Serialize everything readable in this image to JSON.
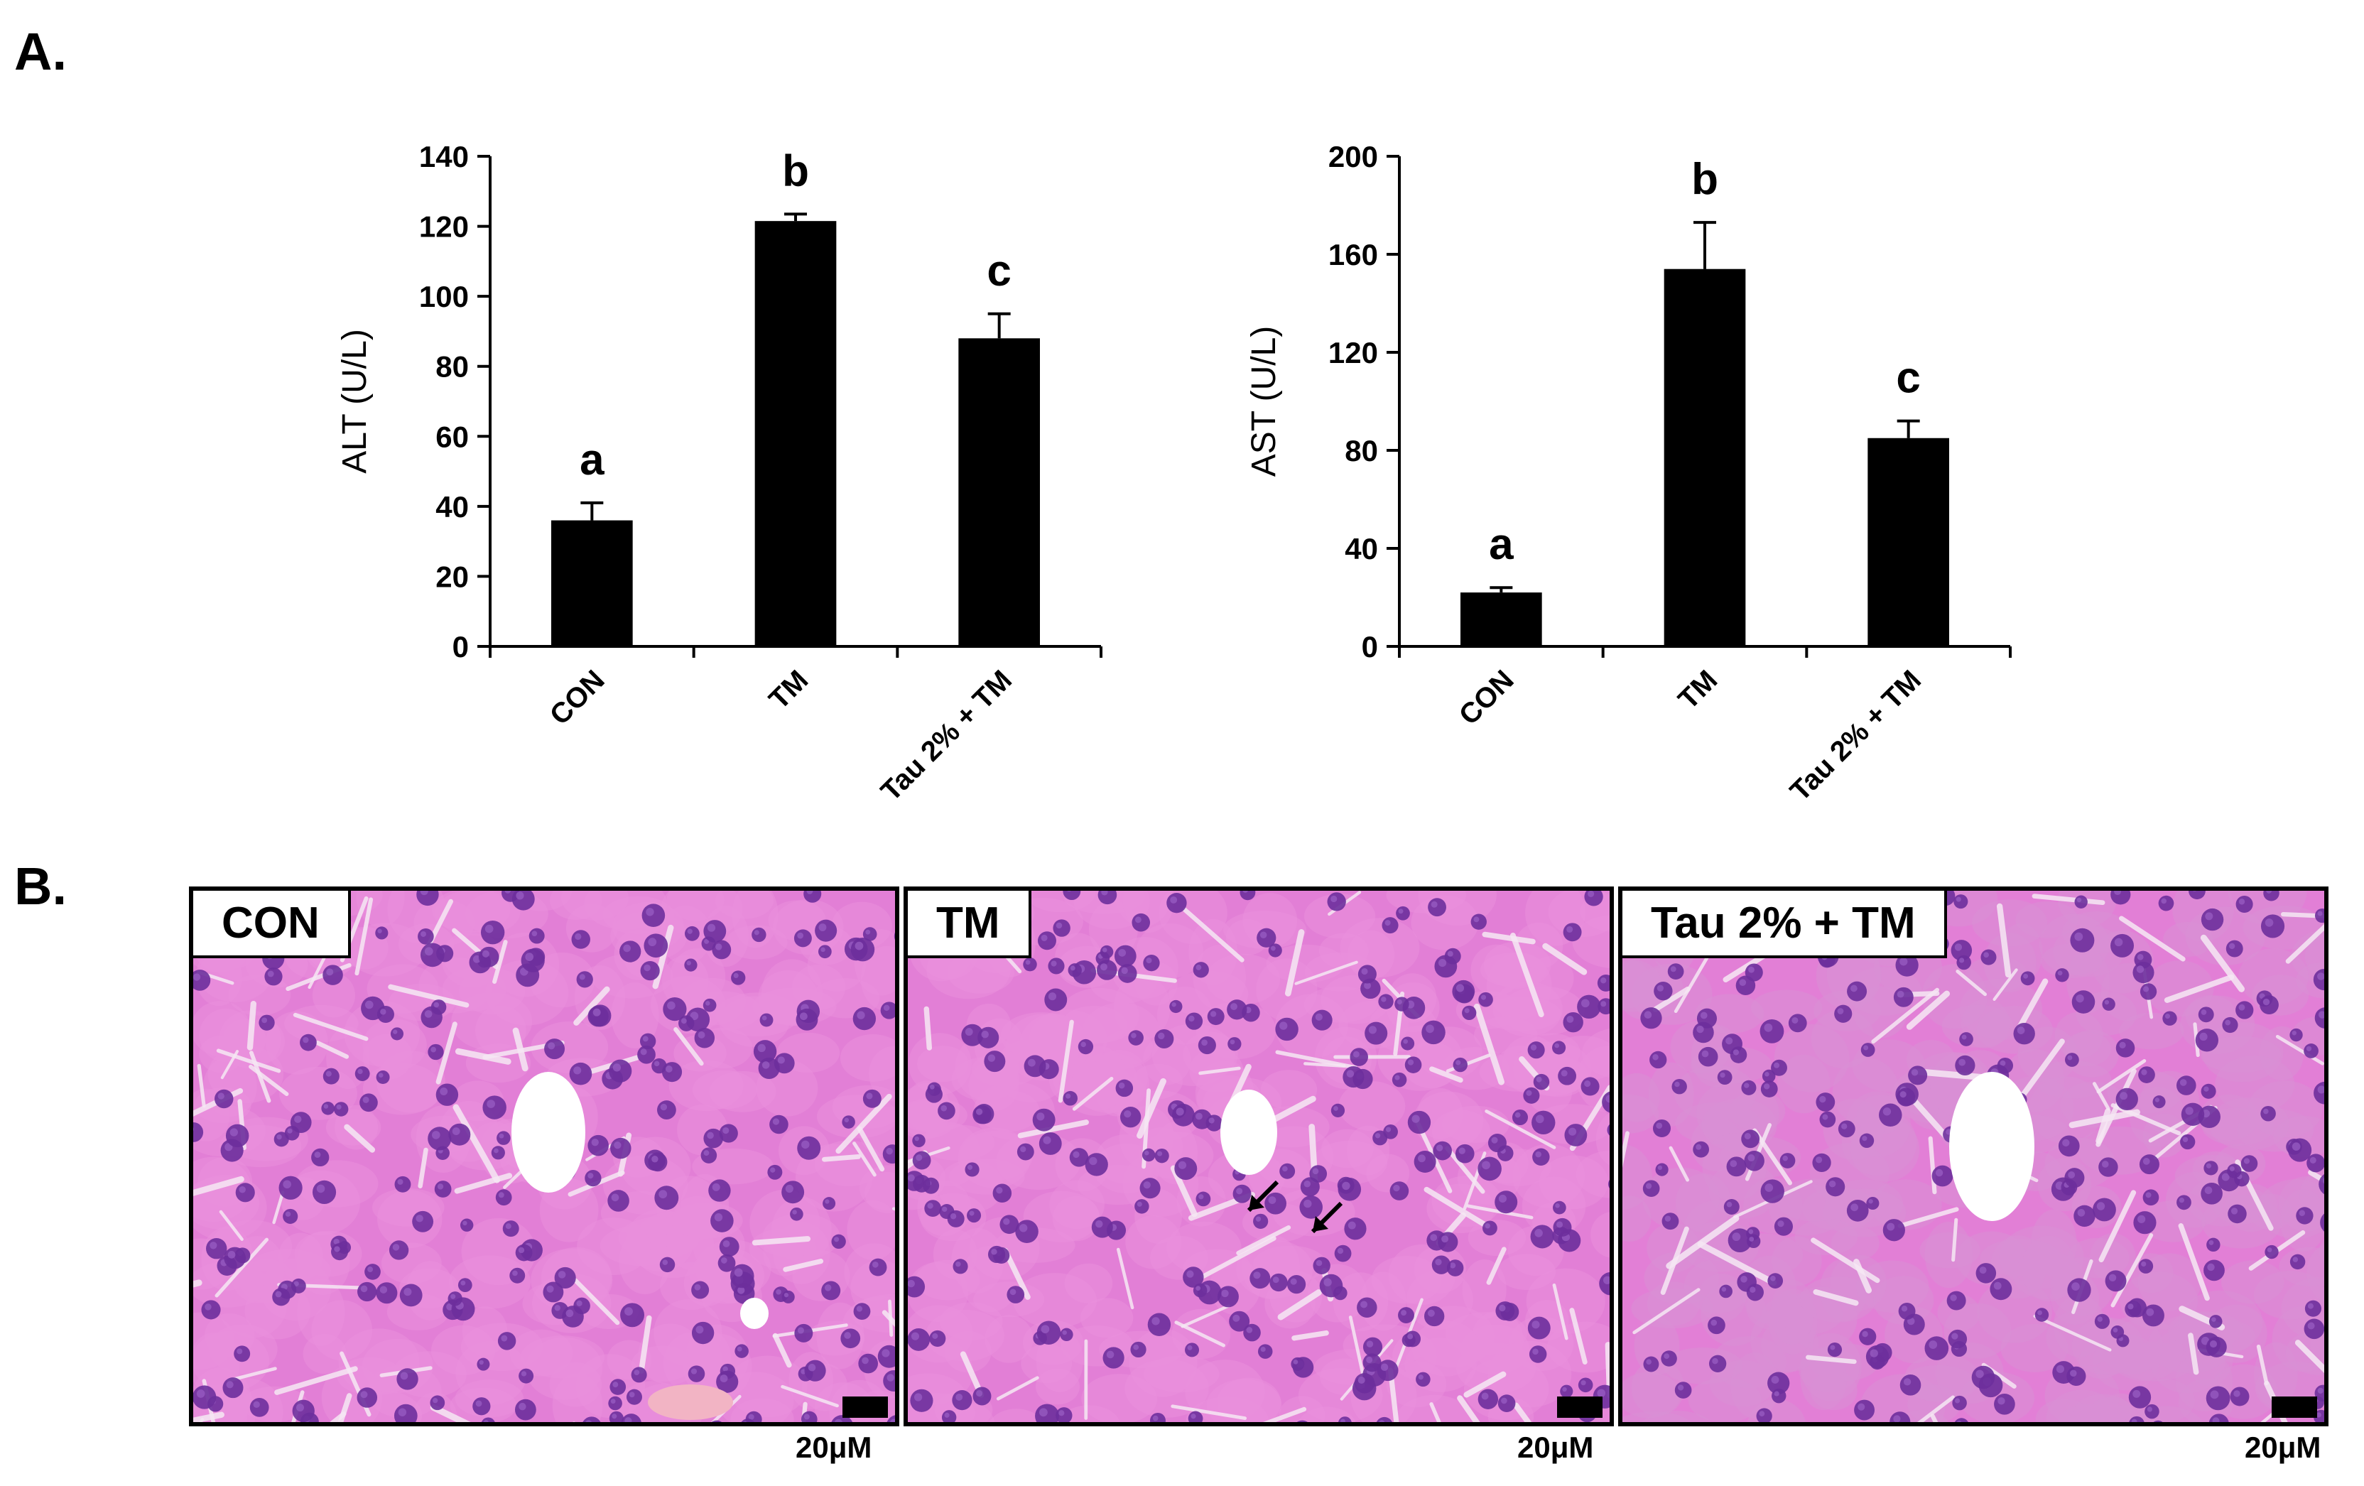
{
  "panels": {
    "a_label": "A.",
    "b_label": "B."
  },
  "chart_data": [
    {
      "type": "bar",
      "categories": [
        "CON",
        "TM",
        "Tau 2% + TM"
      ],
      "values": [
        36,
        121.5,
        88
      ],
      "errors": [
        5,
        2,
        7
      ],
      "significance": [
        "a",
        "b",
        "c"
      ],
      "ylabel": "ALT (U/L)",
      "ylim": [
        0,
        140
      ],
      "yticks": [
        0,
        20,
        40,
        60,
        80,
        100,
        120,
        140
      ],
      "bar_color": "#000000"
    },
    {
      "type": "bar",
      "categories": [
        "CON",
        "TM",
        "Tau 2% + TM"
      ],
      "values": [
        22,
        154,
        85
      ],
      "errors": [
        2,
        19,
        7
      ],
      "significance": [
        "a",
        "b",
        "c"
      ],
      "ylabel": "AST (U/L)",
      "ylim": [
        0,
        200
      ],
      "yticks": [
        0,
        40,
        80,
        120,
        160,
        200
      ],
      "bar_color": "#000000"
    }
  ],
  "histology": [
    {
      "label": "CON",
      "scale": "20μM"
    },
    {
      "label": "TM",
      "scale": "20μM"
    },
    {
      "label": "Tau 2% + TM",
      "scale": "20μM"
    }
  ],
  "colors": {
    "tissue": "#e27fd6",
    "nucleus": "#6d2f9c",
    "lumen": "#ffffff"
  }
}
